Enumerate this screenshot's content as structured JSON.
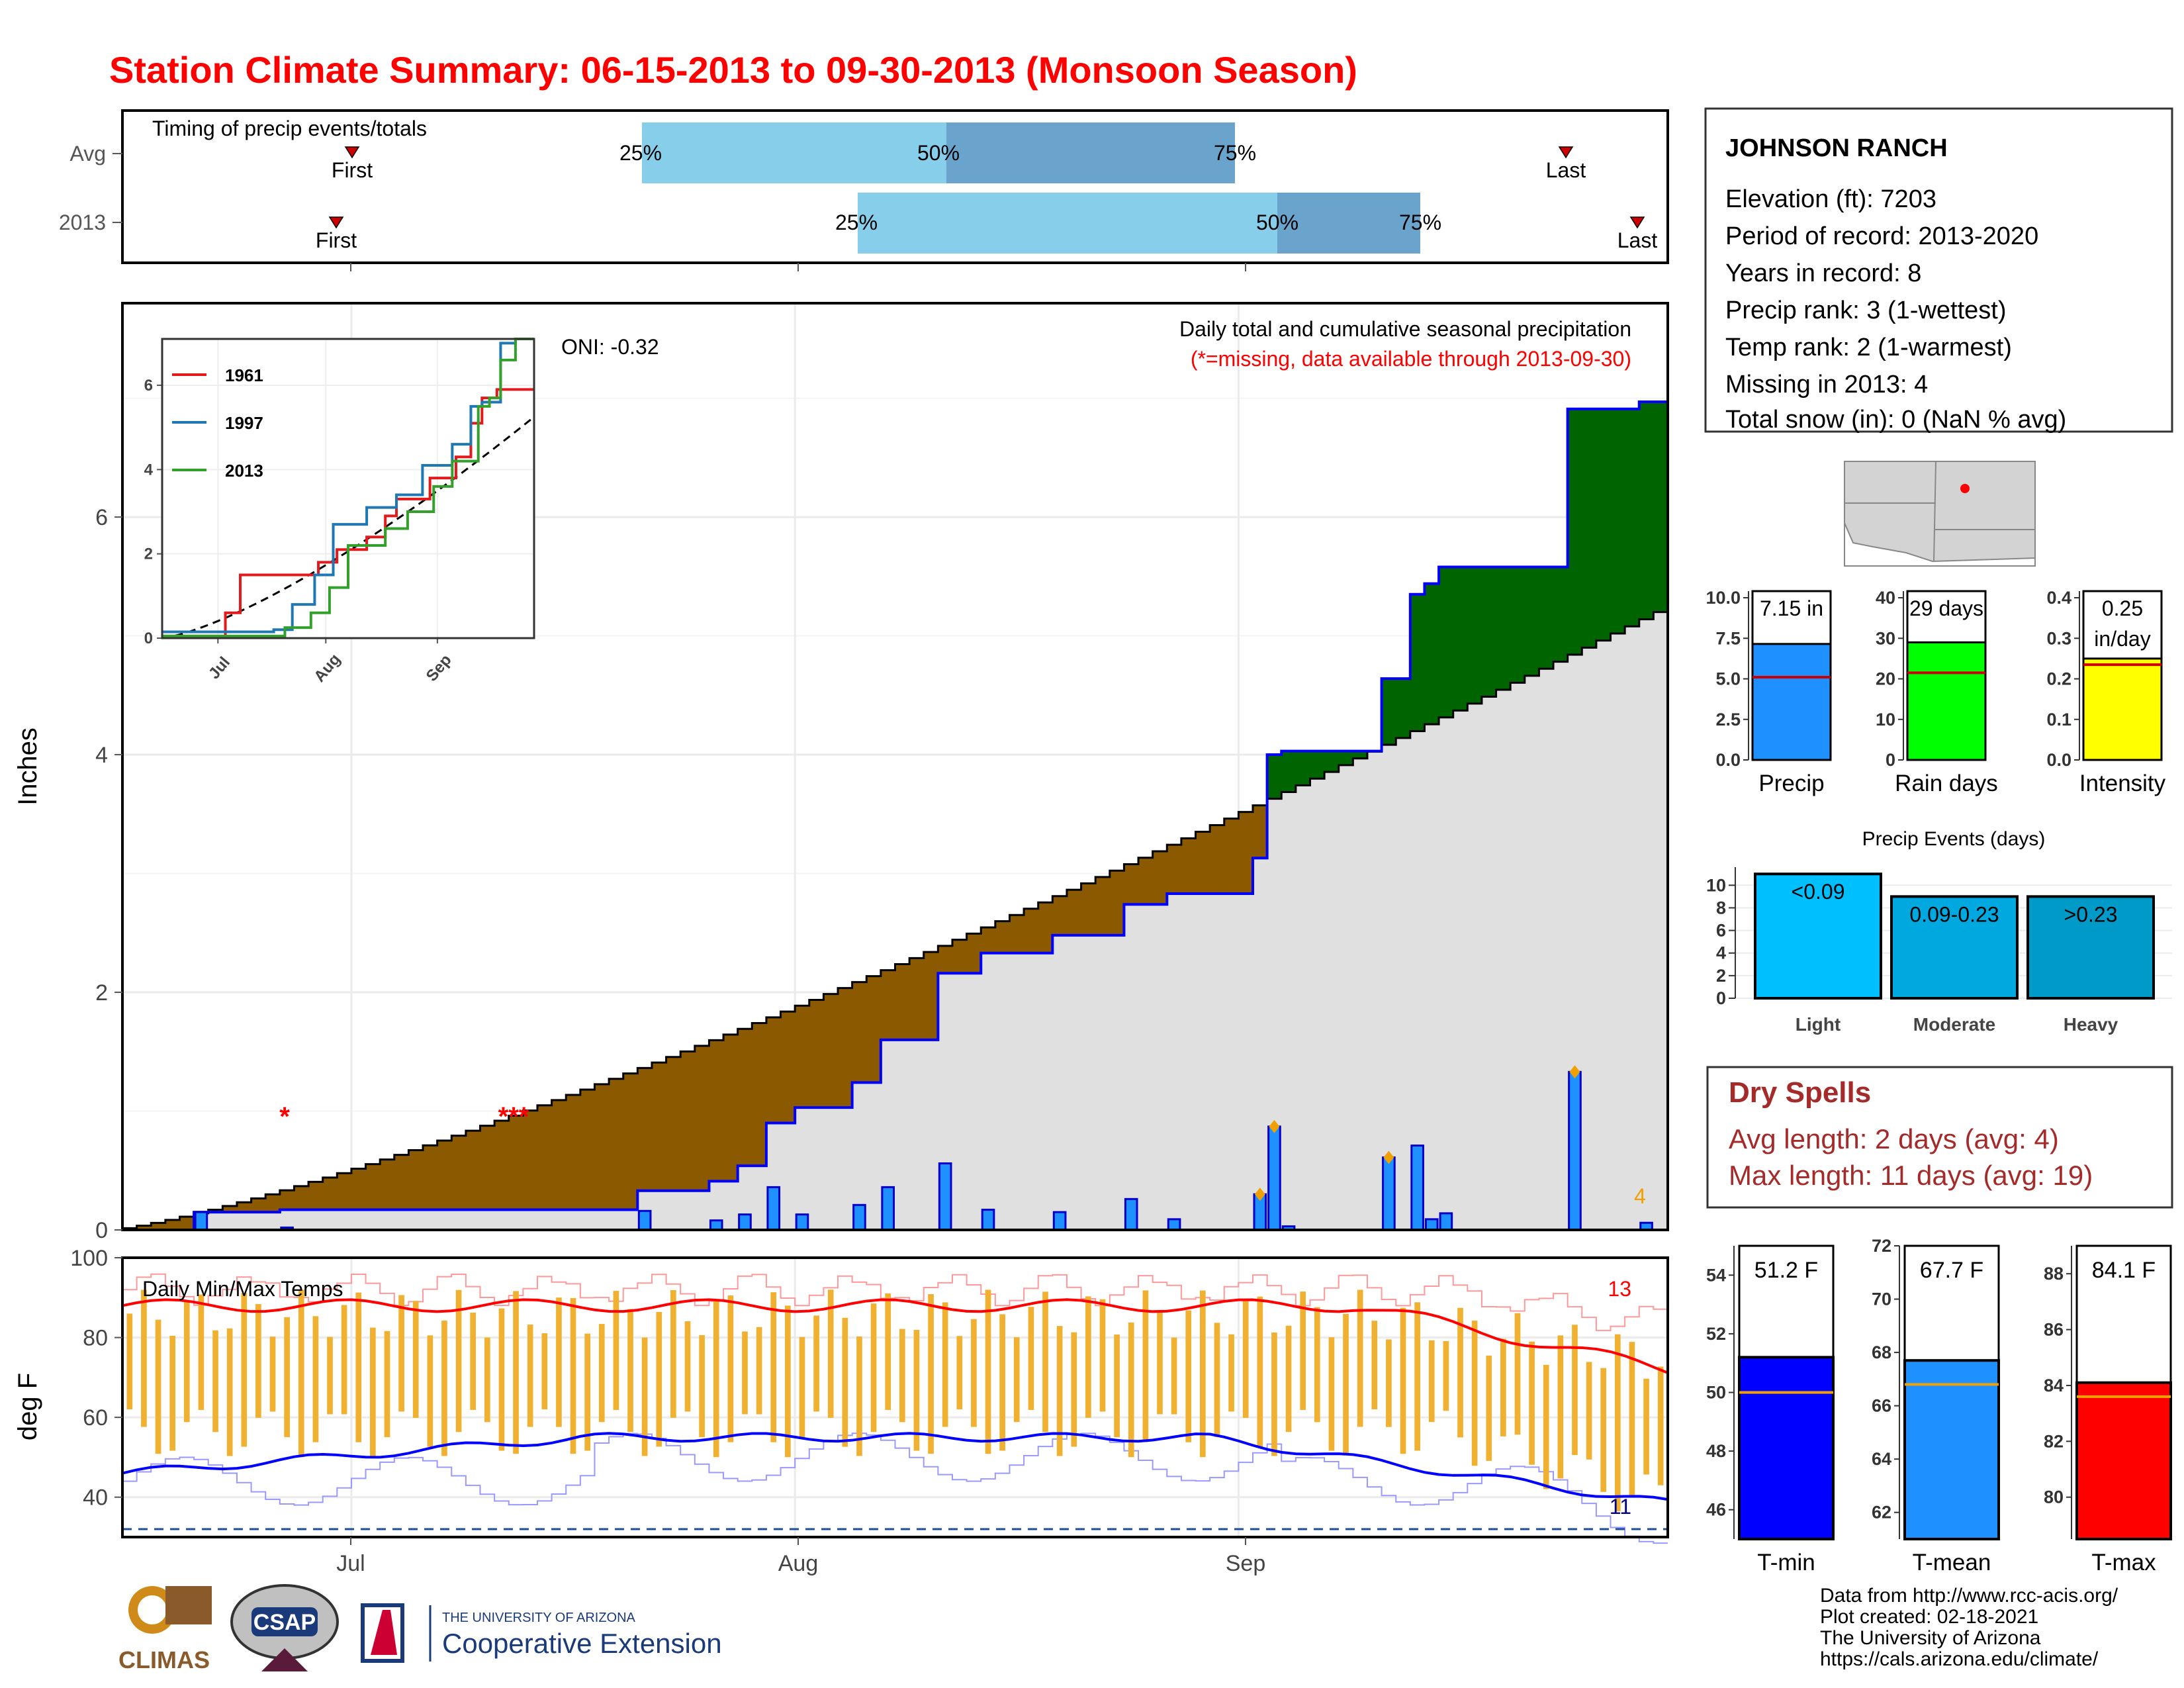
{
  "title": "Station Climate Summary: 06-15-2013 to 09-30-2013 (Monsoon Season)",
  "colors": {
    "title": "#ff0000",
    "light_blue": "#87ceeb",
    "mid_blue": "#6aa4cc",
    "above_avg": "#006400",
    "below_avg": "#8b5a00",
    "avg_fill": "#e0e0e0",
    "precip_bar": "#1e90ff",
    "tmin": "#0000ff",
    "tmean": "#1e90ff",
    "tmax": "#ff0000",
    "range_bar": "#f0b030",
    "dry_spells": "#a52a2a"
  },
  "timing": {
    "label": "Timing of precip events/totals",
    "rows": [
      "Avg",
      "2013"
    ],
    "avg": {
      "first": "First",
      "p25": "25%",
      "p50": "50%",
      "p75": "75%",
      "last": "Last"
    },
    "y2013": {
      "first": "First",
      "p25": "25%",
      "p50": "50%",
      "p75": "75%",
      "last": "Last"
    }
  },
  "precip_panel": {
    "y_label": "Inches",
    "y_ticks": [
      "0",
      "2",
      "4",
      "6"
    ],
    "annot_title": "Daily total and cumulative seasonal precipitation",
    "annot_missing": "(*=missing, data available through 2013-09-30)",
    "oni": "ONI: -0.32",
    "missing_marks": [
      "*",
      "***"
    ],
    "end_count": "4"
  },
  "inset": {
    "y_ticks": [
      "0",
      "2",
      "4",
      "6"
    ],
    "x_ticks": [
      "Jul",
      "Aug",
      "Sep"
    ],
    "legend": [
      {
        "name": "1961",
        "color": "#e31a1c"
      },
      {
        "name": "1997",
        "color": "#1f78b4"
      },
      {
        "name": "2013",
        "color": "#33a02c"
      }
    ]
  },
  "temp_panel": {
    "y_label": "deg F",
    "label": "Daily Min/Max Temps",
    "y_ticks": [
      "40",
      "60",
      "80",
      "100"
    ],
    "max_count": "13",
    "min_count": "11"
  },
  "x_axis": [
    "Jul",
    "Aug",
    "Sep"
  ],
  "station": {
    "name": "JOHNSON RANCH",
    "lines": [
      "Elevation (ft): 7203",
      "Period of record: 2013-2020",
      "Years in record: 8",
      "Precip rank: 3 (1-wettest)",
      "Temp rank: 2 (1-warmest)",
      "Missing in 2013: 4",
      "Total snow (in): 0 (NaN % avg)"
    ]
  },
  "summary_bars": {
    "precip": {
      "label": "Precip",
      "value_text": "7.15 in",
      "value": 7.15,
      "avg": 5.1,
      "ticks": [
        "0.0",
        "2.5",
        "5.0",
        "7.5",
        "10.0"
      ],
      "max": 10
    },
    "rain_days": {
      "label": "Rain days",
      "value_text": "29 days",
      "value": 29,
      "avg": 21.5,
      "ticks": [
        "0",
        "10",
        "20",
        "30",
        "40"
      ],
      "max": 40
    },
    "intensity": {
      "label": "Intensity",
      "value_text_1": "0.25",
      "value_text_2": "in/day",
      "value": 0.25,
      "avg": 0.235,
      "ticks": [
        "0.0",
        "0.1",
        "0.2",
        "0.3",
        "0.4"
      ],
      "max": 0.4
    }
  },
  "events": {
    "title": "Precip Events (days)",
    "ticks": [
      "0",
      "2",
      "4",
      "6",
      "8",
      "10"
    ],
    "bars": [
      {
        "category": "Light",
        "range": "<0.09",
        "value": 11
      },
      {
        "category": "Moderate",
        "range": "0.09-0.23",
        "value": 9
      },
      {
        "category": "Heavy",
        "range": ">0.23",
        "value": 9
      }
    ]
  },
  "dry_spells": {
    "title": "Dry Spells",
    "avg": "Avg length: 2 days (avg: 4)",
    "max": "Max length: 11 days (avg: 19)"
  },
  "temp_bars": {
    "tmin": {
      "label": "T-min",
      "value_text": "51.2 F",
      "value": 51.2,
      "avg": 50.0,
      "ticks": [
        "46",
        "48",
        "50",
        "52",
        "54"
      ],
      "min": 45,
      "max": 55
    },
    "tmean": {
      "label": "T-mean",
      "value_text": "67.7 F",
      "value": 67.7,
      "avg": 66.8,
      "ticks": [
        "62",
        "64",
        "66",
        "68",
        "70",
        "72"
      ],
      "min": 61,
      "max": 72
    },
    "tmax": {
      "label": "T-max",
      "value_text": "84.1 F",
      "value": 84.1,
      "avg": 83.6,
      "ticks": [
        "80",
        "82",
        "84",
        "86",
        "88"
      ],
      "min": 78.5,
      "max": 89
    }
  },
  "credits": [
    "Data from http://www.rcc-acis.org/",
    "Plot created: 02-18-2021",
    "The University of Arizona",
    "https://cals.arizona.edu/climate/"
  ],
  "logos": {
    "climas": "CLIMAS",
    "csap": "CSAP",
    "ua_small": "THE UNIVERSITY OF ARIZONA",
    "ua_big": "Cooperative Extension"
  },
  "chart_data": {
    "type": "area",
    "title": "Station Climate Summary: 06-15-2013 to 09-30-2013 (Monsoon Season)",
    "ylabel": "Inches",
    "ylim": [
      0,
      7.8
    ],
    "x_range": [
      "2013-06-15",
      "2013-09-30"
    ],
    "cumulative_avg_end": 5.2,
    "cumulative_2013_end": 7.15,
    "daily_precip": [
      {
        "date": "2013-06-20",
        "value": 0.15
      },
      {
        "date": "2013-06-26",
        "value": 0.02
      },
      {
        "date": "2013-07-21",
        "value": 0.16
      },
      {
        "date": "2013-07-26",
        "value": 0.08
      },
      {
        "date": "2013-07-28",
        "value": 0.13
      },
      {
        "date": "2013-07-30",
        "value": 0.36
      },
      {
        "date": "2013-08-01",
        "value": 0.13
      },
      {
        "date": "2013-08-05",
        "value": 0.21
      },
      {
        "date": "2013-08-07",
        "value": 0.36
      },
      {
        "date": "2013-08-11",
        "value": 0.56
      },
      {
        "date": "2013-08-14",
        "value": 0.17
      },
      {
        "date": "2013-08-19",
        "value": 0.15
      },
      {
        "date": "2013-08-24",
        "value": 0.26
      },
      {
        "date": "2013-08-27",
        "value": 0.09
      },
      {
        "date": "2013-09-02",
        "value": 0.3
      },
      {
        "date": "2013-09-03",
        "value": 0.87
      },
      {
        "date": "2013-09-04",
        "value": 0.03
      },
      {
        "date": "2013-09-11",
        "value": 0.61
      },
      {
        "date": "2013-09-13",
        "value": 0.71
      },
      {
        "date": "2013-09-14",
        "value": 0.09
      },
      {
        "date": "2013-09-15",
        "value": 0.14
      },
      {
        "date": "2013-09-24",
        "value": 1.33
      },
      {
        "date": "2013-09-29",
        "value": 0.06
      }
    ],
    "temp_range": [
      30,
      100
    ]
  }
}
